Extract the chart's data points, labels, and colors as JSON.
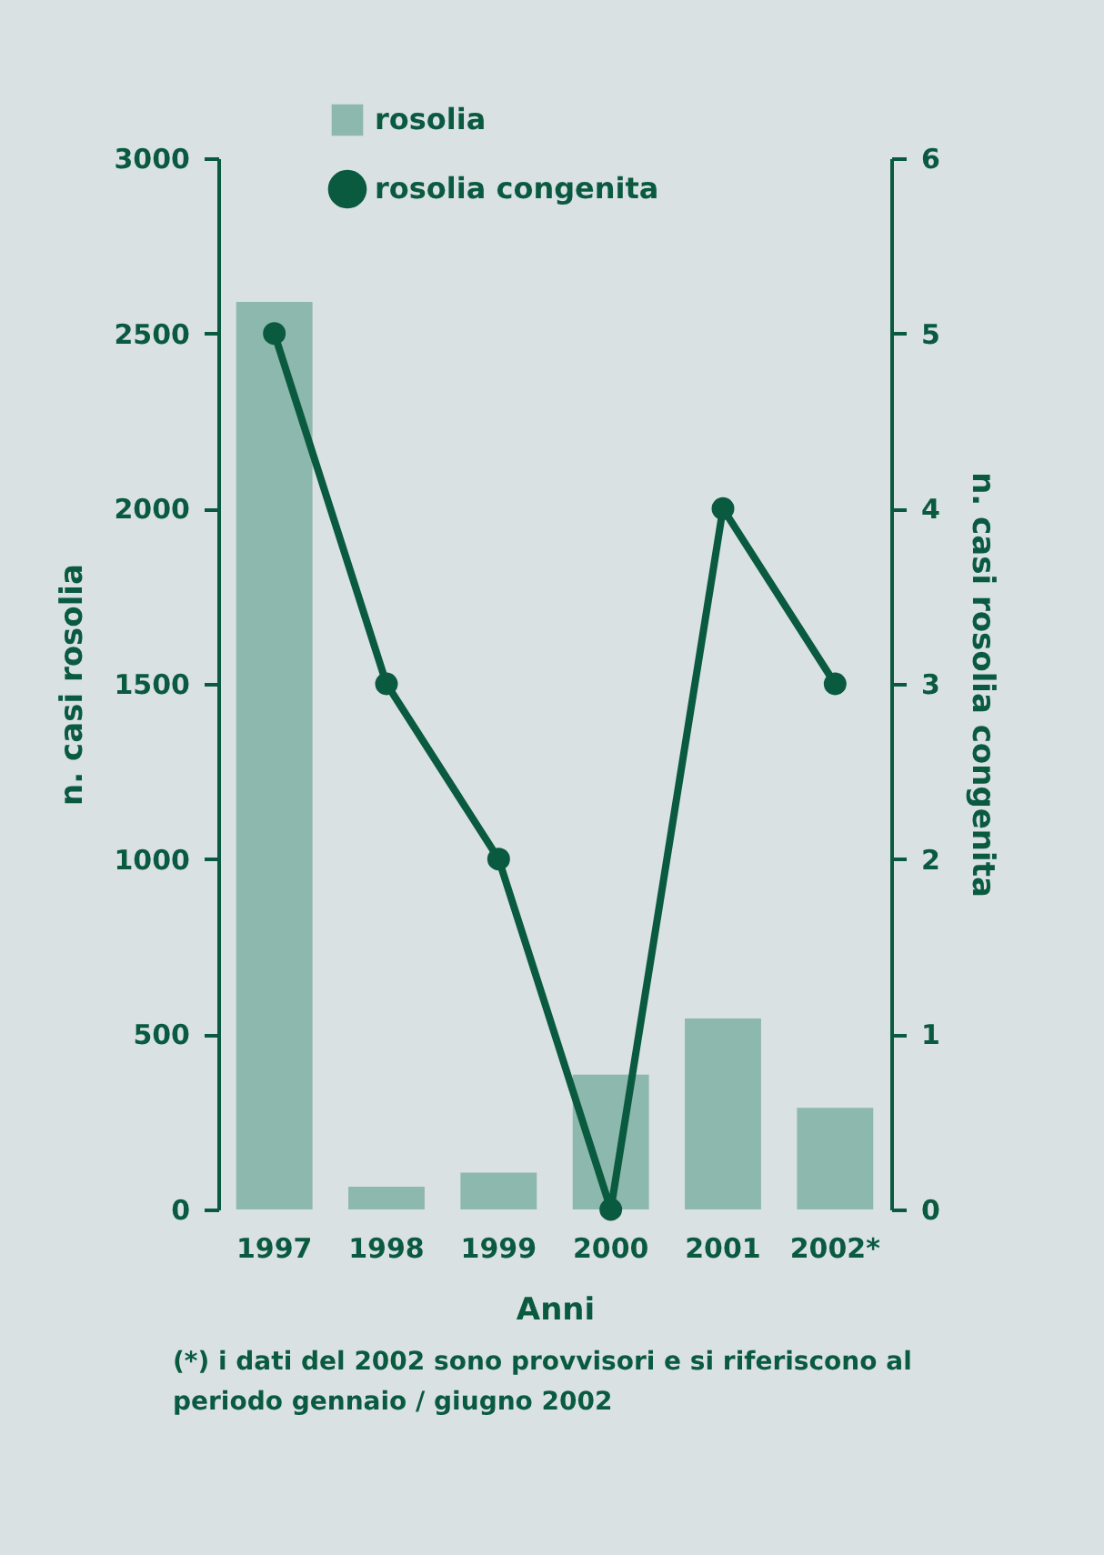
{
  "chart_data": {
    "type": "bar",
    "xlabel": "Anni",
    "ylabel": "n. casi rosolia",
    "y2label": "n. casi rosolia congenita",
    "categories": [
      "1997",
      "1998",
      "1999",
      "2000",
      "2001",
      "2002*"
    ],
    "series": [
      {
        "name": "rosolia",
        "type": "bar",
        "color": "#8db8ad",
        "values": [
          2590,
          65,
          105,
          385,
          545,
          290
        ]
      },
      {
        "name": "rosolia congenita",
        "type": "line",
        "axis": "y2",
        "color": "#0a5a40",
        "values": [
          5,
          3,
          2,
          0,
          4,
          3
        ]
      }
    ],
    "ylim": [
      0,
      3000
    ],
    "yticks": [
      0,
      500,
      1000,
      1500,
      2000,
      2500,
      3000
    ],
    "y2lim": [
      0,
      6
    ],
    "y2ticks": [
      0,
      1,
      2,
      3,
      4,
      5,
      6
    ],
    "legend": "top",
    "marker": "circle",
    "line_style": "solid",
    "grid": false,
    "annotations": [
      "(*) i dati del 2002 sono provvisori e si riferiscono al periodo gennaio / giugno 2002"
    ]
  }
}
